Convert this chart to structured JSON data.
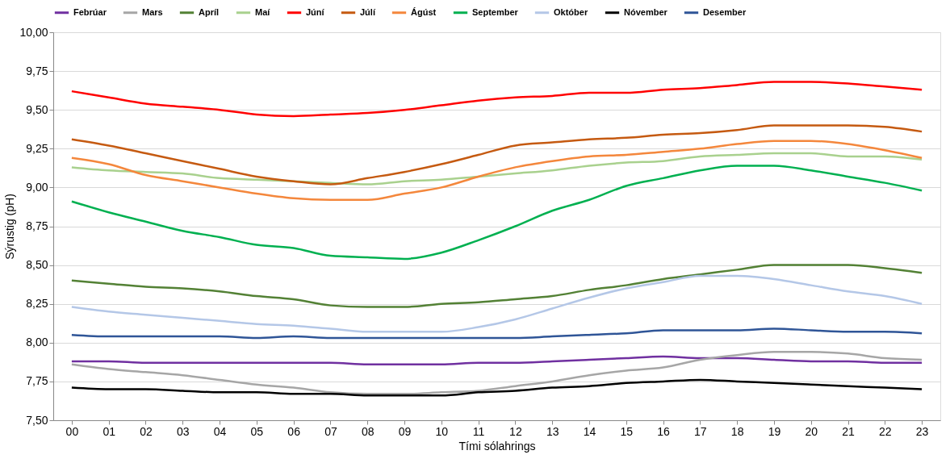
{
  "chart_data": {
    "type": "line",
    "xlabel": "Tími sólahrings",
    "ylabel": "Sýrustig (pH)",
    "categories": [
      "00",
      "01",
      "02",
      "03",
      "04",
      "05",
      "06",
      "07",
      "08",
      "09",
      "10",
      "11",
      "12",
      "13",
      "14",
      "15",
      "16",
      "17",
      "18",
      "19",
      "20",
      "21",
      "22",
      "23"
    ],
    "ylim": [
      7.5,
      10.0
    ],
    "yticks": [
      {
        "value": 7.5,
        "label": "7,50"
      },
      {
        "value": 7.75,
        "label": "7,75"
      },
      {
        "value": 8.0,
        "label": "8,00"
      },
      {
        "value": 8.25,
        "label": "8,25"
      },
      {
        "value": 8.5,
        "label": "8,50"
      },
      {
        "value": 8.75,
        "label": "8,75"
      },
      {
        "value": 9.0,
        "label": "9,00"
      },
      {
        "value": 9.25,
        "label": "9,25"
      },
      {
        "value": 9.5,
        "label": "9,50"
      },
      {
        "value": 9.75,
        "label": "9,75"
      },
      {
        "value": 10.0,
        "label": "10,00"
      }
    ],
    "grid": "y",
    "legend": "top",
    "line_style": "solid",
    "series": [
      {
        "name": "Febrúar",
        "color": "#7030a0",
        "values": [
          7.88,
          7.88,
          7.87,
          7.87,
          7.87,
          7.87,
          7.87,
          7.87,
          7.86,
          7.86,
          7.86,
          7.87,
          7.87,
          7.88,
          7.89,
          7.9,
          7.91,
          7.9,
          7.9,
          7.89,
          7.88,
          7.88,
          7.87,
          7.87
        ]
      },
      {
        "name": "Mars",
        "color": "#a6a6a6",
        "values": [
          7.86,
          7.83,
          7.81,
          7.79,
          7.76,
          7.73,
          7.71,
          7.68,
          7.67,
          7.67,
          7.68,
          7.69,
          7.72,
          7.75,
          7.79,
          7.82,
          7.84,
          7.89,
          7.92,
          7.94,
          7.94,
          7.93,
          7.9,
          7.89
        ]
      },
      {
        "name": "Apríl",
        "color": "#538135",
        "values": [
          8.4,
          8.38,
          8.36,
          8.35,
          8.33,
          8.3,
          8.28,
          8.24,
          8.23,
          8.23,
          8.25,
          8.26,
          8.28,
          8.3,
          8.34,
          8.37,
          8.41,
          8.44,
          8.47,
          8.5,
          8.5,
          8.5,
          8.48,
          8.45
        ]
      },
      {
        "name": "Maí",
        "color": "#a9d18e",
        "values": [
          9.13,
          9.11,
          9.1,
          9.09,
          9.06,
          9.05,
          9.04,
          9.03,
          9.02,
          9.04,
          9.05,
          9.07,
          9.09,
          9.11,
          9.14,
          9.16,
          9.17,
          9.2,
          9.21,
          9.22,
          9.22,
          9.2,
          9.2,
          9.18
        ]
      },
      {
        "name": "Júní",
        "color": "#ff0000",
        "values": [
          9.62,
          9.58,
          9.54,
          9.52,
          9.5,
          9.47,
          9.46,
          9.47,
          9.48,
          9.5,
          9.53,
          9.56,
          9.58,
          9.59,
          9.61,
          9.61,
          9.63,
          9.64,
          9.66,
          9.68,
          9.68,
          9.67,
          9.65,
          9.63
        ]
      },
      {
        "name": "Júlí",
        "color": "#c55a11",
        "values": [
          9.31,
          9.27,
          9.22,
          9.17,
          9.12,
          9.07,
          9.04,
          9.02,
          9.06,
          9.1,
          9.15,
          9.21,
          9.27,
          9.29,
          9.31,
          9.32,
          9.34,
          9.35,
          9.37,
          9.4,
          9.4,
          9.4,
          9.39,
          9.36
        ]
      },
      {
        "name": "Ágúst",
        "color": "#f4873c",
        "values": [
          9.19,
          9.15,
          9.08,
          9.04,
          9.0,
          8.96,
          8.93,
          8.92,
          8.92,
          8.96,
          9.0,
          9.07,
          9.13,
          9.17,
          9.2,
          9.21,
          9.23,
          9.25,
          9.28,
          9.3,
          9.3,
          9.28,
          9.24,
          9.19
        ]
      },
      {
        "name": "September",
        "color": "#00b050",
        "values": [
          8.91,
          8.84,
          8.78,
          8.72,
          8.68,
          8.63,
          8.61,
          8.56,
          8.55,
          8.54,
          8.58,
          8.66,
          8.75,
          8.85,
          8.92,
          9.01,
          9.06,
          9.11,
          9.14,
          9.14,
          9.11,
          9.07,
          9.03,
          8.98
        ]
      },
      {
        "name": "Október",
        "color": "#b4c7e7",
        "values": [
          8.23,
          8.2,
          8.18,
          8.16,
          8.14,
          8.12,
          8.11,
          8.09,
          8.07,
          8.07,
          8.07,
          8.1,
          8.15,
          8.22,
          8.29,
          8.35,
          8.39,
          8.43,
          8.43,
          8.41,
          8.37,
          8.33,
          8.3,
          8.25
        ]
      },
      {
        "name": "Nóvember",
        "color": "#000000",
        "values": [
          7.71,
          7.7,
          7.7,
          7.69,
          7.68,
          7.68,
          7.67,
          7.67,
          7.66,
          7.66,
          7.66,
          7.68,
          7.69,
          7.71,
          7.72,
          7.74,
          7.75,
          7.76,
          7.75,
          7.74,
          7.73,
          7.72,
          7.71,
          7.7
        ]
      },
      {
        "name": "Desember",
        "color": "#2f5597",
        "values": [
          8.05,
          8.04,
          8.04,
          8.04,
          8.04,
          8.03,
          8.04,
          8.03,
          8.03,
          8.03,
          8.03,
          8.03,
          8.03,
          8.04,
          8.05,
          8.06,
          8.08,
          8.08,
          8.08,
          8.09,
          8.08,
          8.07,
          8.07,
          8.06
        ]
      }
    ]
  }
}
